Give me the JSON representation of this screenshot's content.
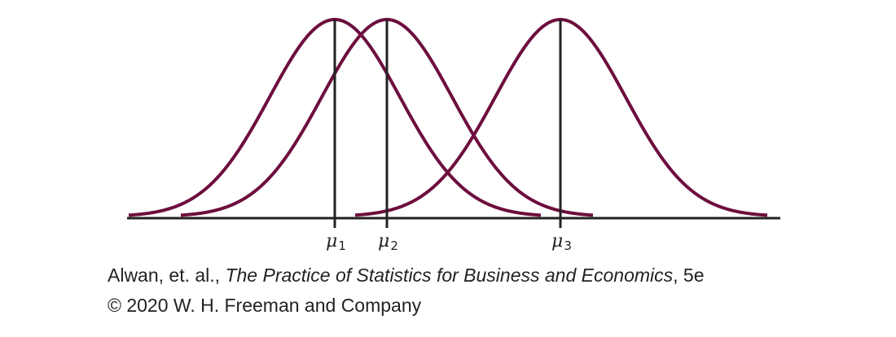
{
  "figure": {
    "curve_color": "#6d0e3e",
    "axis_color": "#222222",
    "means": [
      {
        "symbol": "μ",
        "subscript": "1"
      },
      {
        "symbol": "μ",
        "subscript": "2"
      },
      {
        "symbol": "μ",
        "subscript": "3"
      }
    ]
  },
  "credit": {
    "authors": "Alwan, et. al., ",
    "book_title": "The Practice of Statistics for Business and Economics",
    "edition": ", 5e",
    "copyright": "© 2020 W. H. Freeman and Company"
  }
}
